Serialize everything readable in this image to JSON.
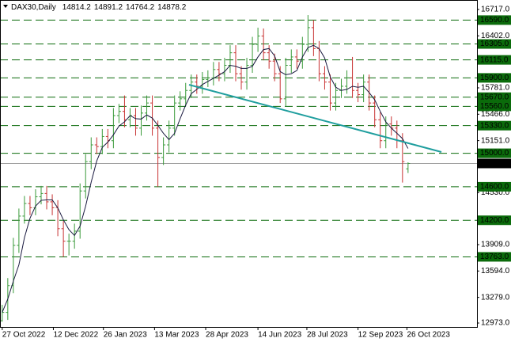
{
  "chart_data": {
    "type": "ohlc",
    "title": "DAX30,Daily",
    "x": [
      "2022-10-27",
      "2022-11-01",
      "2022-11-06",
      "2022-11-11",
      "2022-11-16",
      "2022-11-21",
      "2022-11-26",
      "2022-12-01",
      "2022-12-06",
      "2022-12-11",
      "2022-12-16",
      "2022-12-21",
      "2022-12-26",
      "2022-12-31",
      "2023-01-05",
      "2023-01-10",
      "2023-01-15",
      "2023-01-20",
      "2023-01-25",
      "2023-01-30",
      "2023-02-04",
      "2023-02-09",
      "2023-02-14",
      "2023-02-19",
      "2023-02-24",
      "2023-03-01",
      "2023-03-06",
      "2023-03-11",
      "2023-03-16",
      "2023-03-21",
      "2023-03-26",
      "2023-03-31",
      "2023-04-05",
      "2023-04-10",
      "2023-04-15",
      "2023-04-20",
      "2023-04-25",
      "2023-04-30",
      "2023-05-05",
      "2023-05-10",
      "2023-05-15",
      "2023-05-20",
      "2023-05-25",
      "2023-05-30",
      "2023-06-04",
      "2023-06-09",
      "2023-06-14",
      "2023-06-19",
      "2023-06-24",
      "2023-06-29",
      "2023-07-04",
      "2023-07-09",
      "2023-07-14",
      "2023-07-19",
      "2023-07-24",
      "2023-07-29",
      "2023-08-03",
      "2023-08-08",
      "2023-08-13",
      "2023-08-18",
      "2023-08-23",
      "2023-08-28",
      "2023-09-02",
      "2023-09-07",
      "2023-09-12",
      "2023-09-17",
      "2023-09-22",
      "2023-09-27",
      "2023-10-02",
      "2023-10-07",
      "2023-10-12",
      "2023-10-17",
      "2023-10-22",
      "2023-10-27"
    ],
    "open": [
      13000,
      13100,
      13420,
      13900,
      14250,
      14400,
      14350,
      14480,
      14520,
      14420,
      14350,
      14100,
      13950,
      13950,
      14070,
      14550,
      14900,
      15100,
      15080,
      15200,
      15150,
      15450,
      15500,
      15400,
      15450,
      15300,
      15480,
      15600,
      15300,
      14950,
      15100,
      15300,
      15600,
      15650,
      15750,
      15850,
      15800,
      15880,
      15900,
      16000,
      15950,
      16050,
      16200,
      15950,
      15850,
      16050,
      16300,
      16400,
      16200,
      16100,
      15950,
      15650,
      16050,
      16150,
      16100,
      16300,
      16500,
      16250,
      15950,
      15850,
      15600,
      15750,
      15800,
      15900,
      15750,
      15700,
      15850,
      15600,
      15400,
      15150,
      15350,
      15300,
      15150,
      14814.2
    ],
    "high": [
      13190,
      13510,
      13990,
      14340,
      14490,
      14490,
      14570,
      14610,
      14610,
      14510,
      14440,
      14190,
      14040,
      14160,
      14640,
      14990,
      15190,
      15190,
      15290,
      15290,
      15540,
      15590,
      15690,
      15540,
      15540,
      15570,
      15690,
      15690,
      15390,
      15190,
      15390,
      15690,
      15740,
      15840,
      15940,
      15940,
      15970,
      15990,
      16090,
      16090,
      16140,
      16290,
      16290,
      16040,
      16140,
      16390,
      16500,
      16490,
      16290,
      16190,
      16040,
      16140,
      16240,
      16240,
      16390,
      16650,
      16590,
      16340,
      16040,
      15940,
      15840,
      15890,
      15990,
      16150,
      15840,
      15940,
      15940,
      15690,
      15490,
      15440,
      15440,
      15390,
      15240,
      14891.2
    ],
    "low": [
      12990,
      13010,
      13330,
      13810,
      14160,
      14260,
      14260,
      14390,
      14330,
      14260,
      14010,
      13763,
      13780,
      13860,
      13980,
      14460,
      14810,
      14990,
      14990,
      15060,
      15060,
      15360,
      15310,
      15310,
      15210,
      15210,
      15390,
      15210,
      14600,
      14860,
      15010,
      15210,
      15510,
      15560,
      15660,
      15710,
      15710,
      15790,
      15810,
      15860,
      15860,
      15960,
      15860,
      15760,
      15760,
      15960,
      16210,
      16110,
      16010,
      15860,
      15600,
      15560,
      15960,
      16010,
      16010,
      16210,
      16160,
      15860,
      15760,
      15510,
      15510,
      15660,
      15710,
      15660,
      15610,
      15610,
      15510,
      15310,
      15060,
      15060,
      15210,
      15060,
      14650,
      14764.2
    ],
    "close": [
      13100,
      13420,
      13900,
      14250,
      14400,
      14350,
      14480,
      14520,
      14420,
      14350,
      14100,
      13950,
      13950,
      14070,
      14550,
      14900,
      15100,
      15080,
      15200,
      15150,
      15450,
      15500,
      15400,
      15450,
      15300,
      15480,
      15600,
      15300,
      14950,
      15100,
      15300,
      15600,
      15650,
      15750,
      15850,
      15800,
      15880,
      15900,
      16000,
      15950,
      16050,
      16200,
      15950,
      15850,
      16050,
      16300,
      16400,
      16200,
      16100,
      15950,
      15650,
      16050,
      16150,
      16100,
      16300,
      16500,
      16250,
      15950,
      15850,
      15600,
      15750,
      15800,
      15900,
      15750,
      15700,
      15850,
      15600,
      15400,
      15150,
      15350,
      15300,
      15150,
      14900,
      14878.2
    ],
    "up_color": "#3a9a3a",
    "down_color": "#c83232",
    "ma_values": [
      13100,
      13260,
      13473,
      13668,
      13993,
      14225,
      14370,
      14438,
      14443,
      14443,
      14348,
      14205,
      14088,
      14018,
      14130,
      14368,
      14655,
      14908,
      15070,
      15133,
      15220,
      15325,
      15375,
      15450,
      15413,
      15408,
      15458,
      15420,
      15333,
      15238,
      15163,
      15238,
      15413,
      15575,
      15713,
      15763,
      15820,
      15858,
      15895,
      15933,
      15975,
      16050,
      16038,
      16013,
      16013,
      16038,
      16150,
      16238,
      16250,
      16163,
      15975,
      15938,
      15950,
      15988,
      16150,
      16263,
      16288,
      16250,
      16138,
      15913,
      15788,
      15750,
      15763,
      15800,
      15788,
      15800,
      15725,
      15638,
      15500,
      15375,
      15300,
      15238,
      15175,
      15057
    ],
    "ma_color": "#1a1a40",
    "levels": [
      {
        "value": 16590,
        "label": "16590.0"
      },
      {
        "value": 16305,
        "label": "16305.0"
      },
      {
        "value": 16115,
        "label": "16115.0"
      },
      {
        "value": 15900,
        "label": "15900.0"
      },
      {
        "value": 15670,
        "label": "15670.0"
      },
      {
        "value": 15560,
        "label": "15560.0"
      },
      {
        "value": 15330,
        "label": "15330.0"
      },
      {
        "value": 15000,
        "label": "15000.0"
      },
      {
        "value": 14600,
        "label": "14600.0"
      },
      {
        "value": 14200,
        "label": "14200.0"
      },
      {
        "value": 13763,
        "label": "13763.0"
      }
    ],
    "level_color": "#0b6b0b",
    "price_line_color": "#a0a0a0",
    "trendline": {
      "x": [
        "2023-04-13",
        "2023-11-26"
      ],
      "values": [
        15818,
        15015
      ],
      "color": "#1f9e9e"
    },
    "xlim": [
      "2022-10-25",
      "2023-12-28"
    ],
    "xticks": [
      {
        "value": "2022-10-27",
        "label": "27 Oct 2022"
      },
      {
        "value": "2022-12-12",
        "label": "12 Dec 2022"
      },
      {
        "value": "2023-01-26",
        "label": "26 Jan 2023"
      },
      {
        "value": "2023-03-13",
        "label": "13 Mar 2023"
      },
      {
        "value": "2023-04-28",
        "label": "28 Apr 2023"
      },
      {
        "value": "2023-06-14",
        "label": "14 Jun 2023"
      },
      {
        "value": "2023-07-28",
        "label": "28 Jul 2023"
      },
      {
        "value": "2023-09-12",
        "label": "12 Sep 2023"
      },
      {
        "value": "2023-10-26",
        "label": "26 Oct 2023"
      }
    ],
    "ylim": [
      12926,
      16830
    ],
    "yticks": [
      {
        "value": 16717,
        "label": "16717.0"
      },
      {
        "value": 16402,
        "label": "16402.0"
      },
      {
        "value": 15781,
        "label": "15781.0"
      },
      {
        "value": 15466,
        "label": "15466.0"
      },
      {
        "value": 15151,
        "label": "15151.0"
      },
      {
        "value": 14530,
        "label": "14530.0"
      },
      {
        "value": 13909,
        "label": "13909.0"
      },
      {
        "value": 13594,
        "label": "13594.0"
      },
      {
        "value": 13279,
        "label": "13279.0"
      },
      {
        "value": 12973,
        "label": "12973.0"
      }
    ]
  }
}
